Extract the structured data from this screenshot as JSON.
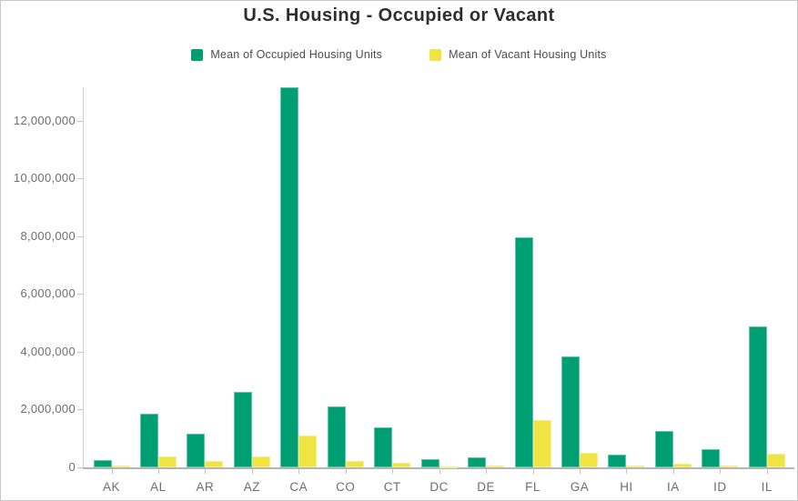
{
  "title": "U.S. Housing - Occupied or Vacant",
  "chart_data": {
    "type": "bar",
    "title": "U.S. Housing - Occupied or Vacant",
    "xlabel": "",
    "ylabel": "",
    "grid": false,
    "legend_position": "top",
    "categories": [
      "AK",
      "AL",
      "AR",
      "AZ",
      "CA",
      "CO",
      "CT",
      "DC",
      "DE",
      "FL",
      "GA",
      "HI",
      "IA",
      "ID",
      "IL"
    ],
    "series": [
      {
        "name": "Mean of Occupied Housing Units",
        "color": "#009E73",
        "border_color": "#5fc7a7",
        "values": [
          250000,
          1850000,
          1150000,
          2620000,
          13150000,
          2120000,
          1390000,
          280000,
          350000,
          7950000,
          3830000,
          450000,
          1260000,
          640000,
          4870000
        ]
      },
      {
        "name": "Mean of Vacant Housing Units",
        "color": "#F0E442",
        "border_color": "#f5ee8d",
        "values": [
          55000,
          370000,
          210000,
          390000,
          1110000,
          230000,
          160000,
          30000,
          55000,
          1630000,
          510000,
          60000,
          135000,
          70000,
          480000
        ]
      }
    ],
    "ylim": [
      0,
      13220000
    ],
    "yticks": [
      0,
      2000000,
      4000000,
      6000000,
      8000000,
      10000000,
      12000000
    ]
  },
  "colors": {
    "axis_line": "#cfcfcf",
    "baseline": "#b5b5b5",
    "tick_mark": "#c2c2c2",
    "tick_text": "#6e6e6e",
    "title_text": "#2e2e2e",
    "legend_text": "#4c4c4c",
    "canvas_border": "#c8c8c8",
    "background": "#ffffff"
  }
}
